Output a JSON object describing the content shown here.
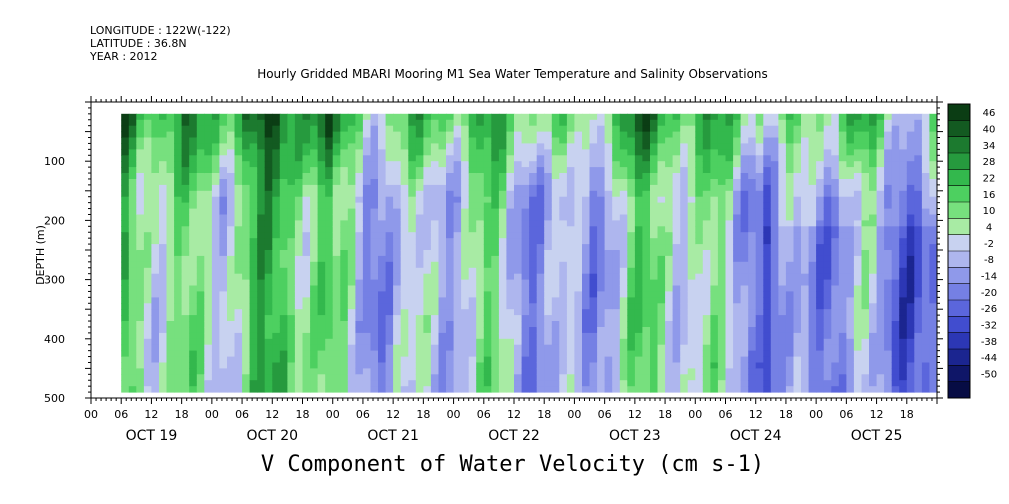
{
  "header": {
    "longitude": "LONGITUDE : 122W(-122)",
    "latitude": "LATITUDE : 36.8N",
    "year": "YEAR : 2012",
    "title": "Hourly Gridded MBARI Mooring M1 Sea Water Temperature and Salinity Observations"
  },
  "chart_data": {
    "type": "heatmap",
    "title": "V Component of Water Velocity (cm s-1)",
    "ylabel": "DEPTH (m)",
    "xlabel": "",
    "ylim": [
      500,
      0
    ],
    "y_ticks": [
      100,
      200,
      300,
      400,
      500
    ],
    "x_hour_ticks": [
      "00",
      "06",
      "12",
      "18",
      "00",
      "06",
      "12",
      "18",
      "00",
      "06",
      "12",
      "18",
      "00",
      "06",
      "12",
      "18",
      "00",
      "06",
      "12",
      "18",
      "00",
      "06",
      "12",
      "18",
      "00",
      "06",
      "12",
      "18"
    ],
    "x_days": [
      "OCT 19",
      "OCT 20",
      "OCT 21",
      "OCT 22",
      "OCT 23",
      "OCT 24",
      "OCT 25"
    ],
    "x_range_hours": [
      0,
      168
    ],
    "data_x_range_hours": [
      6,
      168
    ],
    "data_depth_range": [
      20,
      490
    ],
    "colorbar": {
      "levels": [
        "46",
        "40",
        "34",
        "28",
        "22",
        "16",
        "10",
        "4",
        "-2",
        "-8",
        "-14",
        "-20",
        "-26",
        "-32",
        "-38",
        "-44",
        "-50"
      ],
      "min": -50,
      "max": 50,
      "colors": [
        "#0b3d14",
        "#135a21",
        "#1c7a2f",
        "#269a3e",
        "#33b84d",
        "#4dd060",
        "#77e07e",
        "#a8eba4",
        "#c8d2f0",
        "#aeb6ee",
        "#8f99ea",
        "#7580e4",
        "#5b66dc",
        "#414dcf",
        "#2c37b5",
        "#1b2590",
        "#0f1668",
        "#070c44"
      ]
    },
    "series": [
      {
        "name": "surface-green-band",
        "depth_range": [
          20,
          160
        ],
        "mean_value": 22
      },
      {
        "name": "day19-20-green",
        "time_range_hours": [
          6,
          48
        ],
        "depth_range": [
          20,
          490
        ],
        "mean_value": 14
      },
      {
        "name": "oct24-25-blue",
        "time_range_hours": [
          132,
          168
        ],
        "depth_range": [
          150,
          490
        ],
        "mean_value": -18
      }
    ]
  }
}
